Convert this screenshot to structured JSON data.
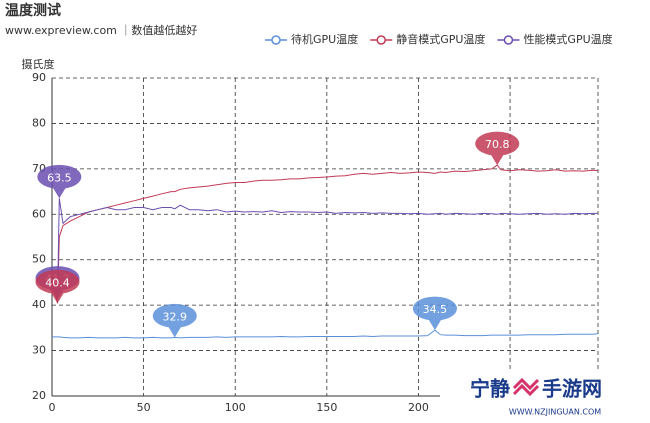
{
  "chart_data": {
    "type": "line",
    "title": "温度测试",
    "subtitle": "www.expreview.com ｜数值越低越好",
    "y_axis_label": "摄氏度",
    "x": [
      0,
      2,
      3,
      4,
      6,
      10,
      15,
      20,
      25,
      30,
      35,
      40,
      45,
      50,
      55,
      60,
      65,
      67,
      70,
      75,
      80,
      85,
      90,
      95,
      100,
      105,
      110,
      115,
      120,
      125,
      130,
      135,
      140,
      145,
      150,
      155,
      160,
      165,
      170,
      175,
      180,
      185,
      190,
      195,
      200,
      205,
      209,
      212,
      215,
      220,
      225,
      230,
      235,
      240,
      243,
      245,
      250,
      255,
      260,
      265,
      270,
      275,
      280,
      285,
      290,
      295,
      298
    ],
    "series": [
      {
        "name": "待机GPU温度",
        "color": "#5b8fd9",
        "values": [
          33.0,
          33.0,
          33.0,
          33.0,
          32.9,
          32.8,
          32.8,
          32.9,
          32.8,
          32.8,
          32.8,
          32.9,
          32.8,
          32.8,
          32.9,
          32.8,
          32.8,
          32.9,
          32.8,
          32.9,
          32.9,
          32.9,
          33.0,
          32.9,
          33.0,
          33.0,
          33.0,
          33.0,
          33.0,
          33.1,
          33.0,
          33.0,
          33.1,
          33.1,
          33.1,
          33.1,
          33.1,
          33.1,
          33.2,
          33.1,
          33.2,
          33.2,
          33.2,
          33.2,
          33.2,
          33.3,
          34.5,
          33.5,
          33.4,
          33.4,
          33.3,
          33.3,
          33.3,
          33.4,
          33.4,
          33.4,
          33.4,
          33.4,
          33.5,
          33.5,
          33.5,
          33.5,
          33.6,
          33.6,
          33.6,
          33.6,
          33.7
        ]
      },
      {
        "name": "静音模式GPU温度",
        "color": "#c23a55",
        "values": [
          45.0,
          42.0,
          40.4,
          55.0,
          57.5,
          58.5,
          59.5,
          60.5,
          61.0,
          61.5,
          62.0,
          62.5,
          63.0,
          63.5,
          64.0,
          64.5,
          65.0,
          65.0,
          65.5,
          65.8,
          66.0,
          66.2,
          66.5,
          66.8,
          67.0,
          67.0,
          67.3,
          67.5,
          67.5,
          67.6,
          67.8,
          67.8,
          68.0,
          68.1,
          68.2,
          68.4,
          68.5,
          68.8,
          69.0,
          68.8,
          69.0,
          69.2,
          69.0,
          69.1,
          69.3,
          69.2,
          69.0,
          69.3,
          69.2,
          69.5,
          69.4,
          69.6,
          69.8,
          70.0,
          70.8,
          69.8,
          69.6,
          69.8,
          69.7,
          69.5,
          69.6,
          69.8,
          69.5,
          69.6,
          69.5,
          69.7,
          69.6
        ]
      },
      {
        "name": "性能模式GPU温度",
        "color": "#6a4fb0",
        "values": [
          45.0,
          44.0,
          41.2,
          63.5,
          58.0,
          59.5,
          60.0,
          60.5,
          61.0,
          61.5,
          61.0,
          61.0,
          61.5,
          61.5,
          61.0,
          61.5,
          61.5,
          61.2,
          62.0,
          61.0,
          61.0,
          60.8,
          61.0,
          60.5,
          60.7,
          60.5,
          60.6,
          60.5,
          60.8,
          60.4,
          60.6,
          60.5,
          60.5,
          60.4,
          60.5,
          60.2,
          60.4,
          60.3,
          60.4,
          60.2,
          60.3,
          60.2,
          60.2,
          60.1,
          60.2,
          60.0,
          60.1,
          60.2,
          60.0,
          60.2,
          60.1,
          60.0,
          60.2,
          60.1,
          60.0,
          60.2,
          60.1,
          60.0,
          60.1,
          60.2,
          60.0,
          60.1,
          60.0,
          60.2,
          60.1,
          60.2,
          60.2
        ]
      }
    ],
    "markers": [
      {
        "series": 2,
        "index": 3
      },
      {
        "series": 2,
        "index": 2
      },
      {
        "series": 1,
        "index": 2
      },
      {
        "series": 1,
        "index": 54
      },
      {
        "series": 0,
        "index": 17
      },
      {
        "series": 0,
        "index": 46
      }
    ],
    "xlim": [
      0,
      298
    ],
    "xticks": [
      0,
      50,
      100,
      150,
      200,
      250
    ],
    "ylim": [
      20,
      90
    ],
    "yticks": [
      20,
      30,
      40,
      50,
      60,
      70,
      80,
      90
    ],
    "grid": true
  },
  "watermark": {
    "left": "宁静",
    "right": "手游网",
    "url": "WWW.NZJINGUAN.COM"
  }
}
